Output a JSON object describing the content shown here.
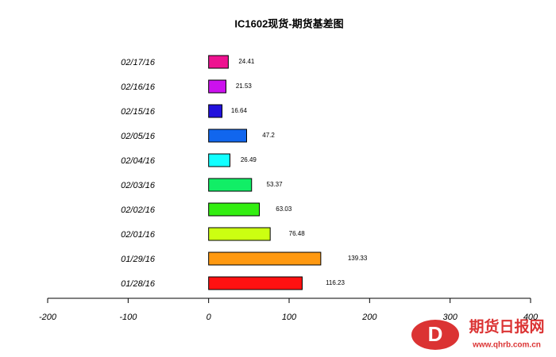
{
  "chart_data": {
    "type": "barh",
    "title": "IC1602现货-期货基差图",
    "categories": [
      "02/17/16",
      "02/16/16",
      "02/15/16",
      "02/05/16",
      "02/04/16",
      "02/03/16",
      "02/02/16",
      "02/01/16",
      "01/29/16",
      "01/28/16"
    ],
    "values": [
      24.41,
      21.53,
      16.64,
      47.2,
      26.49,
      53.37,
      63.03,
      76.48,
      139.33,
      116.23
    ],
    "colors": [
      "#ee1290",
      "#cc11ee",
      "#2211dd",
      "#1166ee",
      "#11ffff",
      "#11ee66",
      "#33ee11",
      "#ccff11",
      "#ff9911",
      "#ff1111"
    ],
    "xlim": [
      -200,
      400
    ],
    "xticks": [
      -200,
      -100,
      0,
      100,
      200,
      300,
      400
    ]
  },
  "watermark": {
    "name": "期货日报网",
    "url": "www.qhrb.com.cn"
  }
}
